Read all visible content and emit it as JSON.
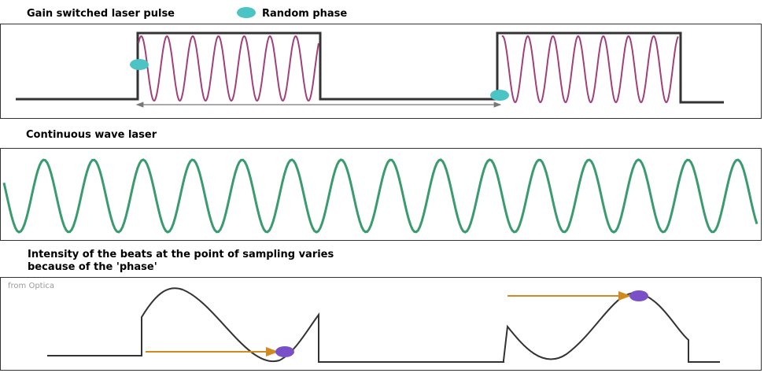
{
  "header": {
    "title": "Gain switched laser pulse",
    "legend": "Random  phase"
  },
  "sections": [
    {
      "title": "Continuous wave laser"
    },
    {
      "title_lines": [
        "Intensity of the beats at the point of sampling varies",
        "because of the 'phase'"
      ]
    }
  ],
  "source": "from Optica"
}
